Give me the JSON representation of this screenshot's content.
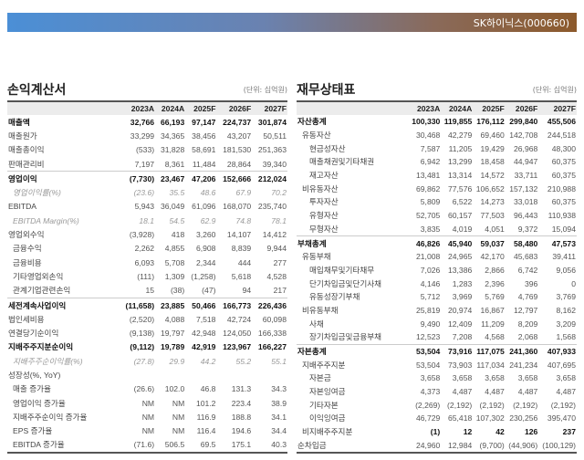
{
  "header": {
    "company": "SK하이닉스(000660)"
  },
  "income": {
    "title": "손익계산서",
    "unit": "(단위: 십억원)",
    "columns": [
      "2023A",
      "2024A",
      "2025F",
      "2026F",
      "2027F"
    ],
    "rows": [
      {
        "label": "매출액",
        "values": [
          "32,766",
          "66,193",
          "97,147",
          "224,737",
          "301,874"
        ],
        "style": "b",
        "indent": 0
      },
      {
        "label": "매출원가",
        "values": [
          "33,299",
          "34,365",
          "38,456",
          "43,207",
          "50,511"
        ],
        "indent": 0
      },
      {
        "label": "매출총이익",
        "values": [
          "(533)",
          "31,828",
          "58,691",
          "181,530",
          "251,363"
        ],
        "indent": 0
      },
      {
        "label": "판매관리비",
        "values": [
          "7,197",
          "8,361",
          "11,484",
          "28,864",
          "39,340"
        ],
        "indent": 0
      },
      {
        "label": "영업이익",
        "values": [
          "(7,730)",
          "23,467",
          "47,206",
          "152,666",
          "212,024"
        ],
        "style": "b sep",
        "indent": 0
      },
      {
        "label": "영업이익률(%)",
        "values": [
          "(23.6)",
          "35.5",
          "48.6",
          "67.9",
          "70.2"
        ],
        "style": "i",
        "indent": 1
      },
      {
        "label": "EBITDA",
        "values": [
          "5,943",
          "36,049",
          "61,096",
          "168,070",
          "235,740"
        ],
        "indent": 0
      },
      {
        "label": "EBITDA Margin(%)",
        "values": [
          "18.1",
          "54.5",
          "62.9",
          "74.8",
          "78.1"
        ],
        "style": "i",
        "indent": 1
      },
      {
        "label": "영업외수익",
        "values": [
          "(3,928)",
          "418",
          "3,260",
          "14,107",
          "14,412"
        ],
        "indent": 0
      },
      {
        "label": "금융수익",
        "values": [
          "2,262",
          "4,855",
          "6,908",
          "8,839",
          "9,944"
        ],
        "indent": 1
      },
      {
        "label": "금융비용",
        "values": [
          "6,093",
          "5,708",
          "2,344",
          "444",
          "277"
        ],
        "indent": 1
      },
      {
        "label": "기타영업외손익",
        "values": [
          "(111)",
          "1,309",
          "(1,258)",
          "5,618",
          "4,528"
        ],
        "indent": 1
      },
      {
        "label": "관계기업관련손익",
        "values": [
          "15",
          "(38)",
          "(47)",
          "94",
          "217"
        ],
        "indent": 1
      },
      {
        "label": "세전계속사업이익",
        "values": [
          "(11,658)",
          "23,885",
          "50,466",
          "166,773",
          "226,436"
        ],
        "style": "b sep",
        "indent": 0
      },
      {
        "label": "법인세비용",
        "values": [
          "(2,520)",
          "4,088",
          "7,518",
          "42,724",
          "60,098"
        ],
        "indent": 0
      },
      {
        "label": "연결당기순이익",
        "values": [
          "(9,138)",
          "19,797",
          "42,948",
          "124,050",
          "166,338"
        ],
        "indent": 0
      },
      {
        "label": "지배주주지분순이익",
        "values": [
          "(9,112)",
          "19,789",
          "42,919",
          "123,967",
          "166,227"
        ],
        "style": "b",
        "indent": 0
      },
      {
        "label": "지배주주순이익률(%)",
        "values": [
          "(27.8)",
          "29.9",
          "44.2",
          "55.2",
          "55.1"
        ],
        "style": "i",
        "indent": 1
      },
      {
        "label": "성장성(%, YoY)",
        "values": [
          "",
          "",
          "",
          "",
          ""
        ],
        "indent": 0
      },
      {
        "label": "매출 증가율",
        "values": [
          "(26.6)",
          "102.0",
          "46.8",
          "131.3",
          "34.3"
        ],
        "indent": 1
      },
      {
        "label": "영업이익 증가율",
        "values": [
          "NM",
          "NM",
          "101.2",
          "223.4",
          "38.9"
        ],
        "indent": 1
      },
      {
        "label": "지배주주순이익 증가율",
        "values": [
          "NM",
          "NM",
          "116.9",
          "188.8",
          "34.1"
        ],
        "indent": 1
      },
      {
        "label": "EPS 증가율",
        "values": [
          "NM",
          "NM",
          "116.4",
          "194.6",
          "34.4"
        ],
        "indent": 1
      },
      {
        "label": "EBITDA 증가율",
        "values": [
          "(71.6)",
          "506.5",
          "69.5",
          "175.1",
          "40.3"
        ],
        "indent": 1
      }
    ]
  },
  "balance": {
    "title": "재무상태표",
    "unit": "(단위: 십억원)",
    "columns": [
      "2023A",
      "2024A",
      "2025F",
      "2026F",
      "2027F"
    ],
    "rows": [
      {
        "label": "자산총계",
        "values": [
          "100,330",
          "119,855",
          "176,112",
          "299,840",
          "455,506"
        ],
        "style": "b",
        "indent": 0
      },
      {
        "label": "유동자산",
        "values": [
          "30,468",
          "42,279",
          "69,460",
          "142,708",
          "244,518"
        ],
        "indent": 1
      },
      {
        "label": "현금성자산",
        "values": [
          "7,587",
          "11,205",
          "19,429",
          "26,968",
          "48,300"
        ],
        "indent": 2
      },
      {
        "label": "매출채권및기타채권",
        "values": [
          "6,942",
          "13,299",
          "18,458",
          "44,947",
          "60,375"
        ],
        "indent": 2
      },
      {
        "label": "재고자산",
        "values": [
          "13,481",
          "13,314",
          "14,572",
          "33,711",
          "60,375"
        ],
        "indent": 2
      },
      {
        "label": "비유동자산",
        "values": [
          "69,862",
          "77,576",
          "106,652",
          "157,132",
          "210,988"
        ],
        "indent": 1
      },
      {
        "label": "투자자산",
        "values": [
          "5,809",
          "6,522",
          "14,273",
          "33,018",
          "60,375"
        ],
        "indent": 2
      },
      {
        "label": "유형자산",
        "values": [
          "52,705",
          "60,157",
          "77,503",
          "96,443",
          "110,938"
        ],
        "indent": 2
      },
      {
        "label": "무형자산",
        "values": [
          "3,835",
          "4,019",
          "4,051",
          "9,372",
          "15,094"
        ],
        "indent": 2
      },
      {
        "label": "부채총계",
        "values": [
          "46,826",
          "45,940",
          "59,037",
          "58,480",
          "47,573"
        ],
        "style": "b sep",
        "indent": 0
      },
      {
        "label": "유동부채",
        "values": [
          "21,008",
          "24,965",
          "42,170",
          "45,683",
          "39,411"
        ],
        "indent": 1
      },
      {
        "label": "매입채무및기타채무",
        "values": [
          "7,026",
          "13,386",
          "2,866",
          "6,742",
          "9,056"
        ],
        "indent": 2
      },
      {
        "label": "단기차입금및단기사채",
        "values": [
          "4,146",
          "1,283",
          "2,396",
          "396",
          "0"
        ],
        "indent": 2
      },
      {
        "label": "유동성장기부채",
        "values": [
          "5,712",
          "3,969",
          "5,769",
          "4,769",
          "3,769"
        ],
        "indent": 2
      },
      {
        "label": "비유동부채",
        "values": [
          "25,819",
          "20,974",
          "16,867",
          "12,797",
          "8,162"
        ],
        "indent": 1
      },
      {
        "label": "사채",
        "values": [
          "9,490",
          "12,409",
          "11,209",
          "8,209",
          "3,209"
        ],
        "indent": 2
      },
      {
        "label": "장기차입금및금융부채",
        "values": [
          "12,523",
          "7,208",
          "4,568",
          "2,068",
          "1,568"
        ],
        "indent": 2
      },
      {
        "label": "자본총계",
        "values": [
          "53,504",
          "73,916",
          "117,075",
          "241,360",
          "407,933"
        ],
        "style": "b sep",
        "indent": 0
      },
      {
        "label": "지배주주지분",
        "values": [
          "53,504",
          "73,903",
          "117,034",
          "241,234",
          "407,695"
        ],
        "indent": 1
      },
      {
        "label": "자본금",
        "values": [
          "3,658",
          "3,658",
          "3,658",
          "3,658",
          "3,658"
        ],
        "indent": 2
      },
      {
        "label": "자본잉여금",
        "values": [
          "4,373",
          "4,487",
          "4,487",
          "4,487",
          "4,487"
        ],
        "indent": 2
      },
      {
        "label": "기타자본",
        "values": [
          "(2,269)",
          "(2,192)",
          "(2,192)",
          "(2,192)",
          "(2,192)"
        ],
        "indent": 2
      },
      {
        "label": "이익잉여금",
        "values": [
          "46,729",
          "65,418",
          "107,302",
          "230,256",
          "395,470"
        ],
        "indent": 2
      },
      {
        "label": "비지배주주지분",
        "values": [
          "(1)",
          "12",
          "42",
          "126",
          "237"
        ],
        "style": "bv",
        "indent": 1
      },
      {
        "label": "순차입금",
        "values": [
          "24,960",
          "12,984",
          "(9,700)",
          "(44,906)",
          "(100,129)"
        ],
        "indent": 0
      }
    ]
  }
}
